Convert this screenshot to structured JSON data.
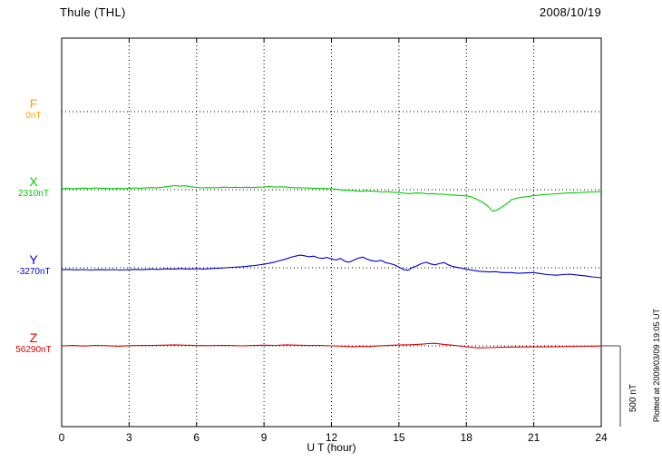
{
  "chart_data": {
    "type": "line",
    "title": "Thule (THL)",
    "date": "2008/10/19",
    "xlabel": "U T (hour)",
    "x_range": [
      0,
      24
    ],
    "x_ticks": [
      0,
      3,
      6,
      9,
      12,
      15,
      18,
      21,
      24
    ],
    "grid": "dotted-vertical-at-3h",
    "legend_position": "left-margin",
    "scale_bar": {
      "label": "500 nT",
      "nT": 500
    },
    "plotted_at": "Plotted at 2009/03/09 19:05 UT",
    "series": [
      {
        "name": "F",
        "baseline_label": "0nT",
        "baseline_value_nT": 0,
        "color": "#FFA500",
        "points": []
      },
      {
        "name": "X",
        "baseline_label": "2310nT",
        "baseline_value_nT": 2310,
        "color": "#00CC00",
        "points": [
          [
            0,
            6
          ],
          [
            0.25,
            9
          ],
          [
            0.5,
            5
          ],
          [
            0.75,
            8
          ],
          [
            1,
            10
          ],
          [
            1.25,
            7
          ],
          [
            1.5,
            11
          ],
          [
            1.75,
            9
          ],
          [
            2,
            8
          ],
          [
            2.25,
            6
          ],
          [
            2.5,
            9
          ],
          [
            2.75,
            7
          ],
          [
            3,
            8
          ],
          [
            3.25,
            11
          ],
          [
            3.5,
            9
          ],
          [
            3.75,
            12
          ],
          [
            4,
            13
          ],
          [
            4.25,
            12
          ],
          [
            4.5,
            16
          ],
          [
            4.75,
            20
          ],
          [
            5,
            26
          ],
          [
            5.25,
            22
          ],
          [
            5.5,
            24
          ],
          [
            5.75,
            18
          ],
          [
            6,
            14
          ],
          [
            6.25,
            11
          ],
          [
            6.5,
            13
          ],
          [
            6.75,
            12
          ],
          [
            7,
            13
          ],
          [
            7.25,
            16
          ],
          [
            7.5,
            14
          ],
          [
            7.75,
            15
          ],
          [
            8,
            13
          ],
          [
            8.25,
            15
          ],
          [
            8.5,
            13
          ],
          [
            8.75,
            16
          ],
          [
            9,
            17
          ],
          [
            9.25,
            19
          ],
          [
            9.5,
            16
          ],
          [
            9.75,
            18
          ],
          [
            10,
            16
          ],
          [
            10.25,
            13
          ],
          [
            10.5,
            12
          ],
          [
            10.75,
            11
          ],
          [
            11,
            10
          ],
          [
            11.25,
            9
          ],
          [
            11.5,
            8
          ],
          [
            11.75,
            7
          ],
          [
            12,
            6
          ],
          [
            12.25,
            2
          ],
          [
            12.5,
            -2
          ],
          [
            12.75,
            -4
          ],
          [
            13,
            -6
          ],
          [
            13.25,
            -10
          ],
          [
            13.5,
            -7
          ],
          [
            13.75,
            -9
          ],
          [
            14,
            -10
          ],
          [
            14.25,
            -14
          ],
          [
            14.5,
            -12
          ],
          [
            14.75,
            -16
          ],
          [
            15,
            -18
          ],
          [
            15.25,
            -22
          ],
          [
            15.5,
            -24
          ],
          [
            15.75,
            -20
          ],
          [
            16,
            -21
          ],
          [
            16.25,
            -26
          ],
          [
            16.5,
            -24
          ],
          [
            16.75,
            -27
          ],
          [
            17,
            -28
          ],
          [
            17.25,
            -32
          ],
          [
            17.5,
            -34
          ],
          [
            17.75,
            -36
          ],
          [
            18,
            -38
          ],
          [
            18.2,
            -44
          ],
          [
            18.4,
            -55
          ],
          [
            18.6,
            -68
          ],
          [
            18.8,
            -85
          ],
          [
            19,
            -108
          ],
          [
            19.1,
            -125
          ],
          [
            19.2,
            -133
          ],
          [
            19.35,
            -126
          ],
          [
            19.5,
            -115
          ],
          [
            19.7,
            -96
          ],
          [
            19.9,
            -76
          ],
          [
            20,
            -62
          ],
          [
            20.25,
            -52
          ],
          [
            20.5,
            -46
          ],
          [
            20.75,
            -42
          ],
          [
            21,
            -36
          ],
          [
            21.25,
            -33
          ],
          [
            21.5,
            -30
          ],
          [
            21.75,
            -28
          ],
          [
            22,
            -26
          ],
          [
            22.25,
            -23
          ],
          [
            22.5,
            -20
          ],
          [
            22.75,
            -19
          ],
          [
            23,
            -18
          ],
          [
            23.25,
            -16
          ],
          [
            23.5,
            -14
          ],
          [
            23.75,
            -13
          ],
          [
            24,
            -12
          ]
        ]
      },
      {
        "name": "Y",
        "baseline_label": "-3270nT",
        "baseline_value_nT": -3270,
        "color": "#0000CC",
        "points": [
          [
            0,
            -12
          ],
          [
            0.3,
            -10
          ],
          [
            0.6,
            -13
          ],
          [
            1,
            -11
          ],
          [
            1.3,
            -14
          ],
          [
            1.6,
            -12
          ],
          [
            2,
            -13
          ],
          [
            2.3,
            -11
          ],
          [
            2.6,
            -14
          ],
          [
            3,
            -12
          ],
          [
            3.3,
            -10
          ],
          [
            3.6,
            -12
          ],
          [
            4,
            -8
          ],
          [
            4.3,
            -10
          ],
          [
            4.6,
            -7
          ],
          [
            5,
            -8
          ],
          [
            5.3,
            -5
          ],
          [
            5.6,
            -8
          ],
          [
            6,
            -6
          ],
          [
            6.3,
            -8
          ],
          [
            6.6,
            -5
          ],
          [
            7,
            -2
          ],
          [
            7.3,
            0
          ],
          [
            7.6,
            3
          ],
          [
            8,
            6
          ],
          [
            8.3,
            10
          ],
          [
            8.6,
            14
          ],
          [
            9,
            22
          ],
          [
            9.3,
            30
          ],
          [
            9.6,
            40
          ],
          [
            10,
            55
          ],
          [
            10.2,
            65
          ],
          [
            10.4,
            72
          ],
          [
            10.6,
            78
          ],
          [
            10.8,
            74
          ],
          [
            11,
            68
          ],
          [
            11.2,
            72
          ],
          [
            11.4,
            62
          ],
          [
            11.6,
            58
          ],
          [
            11.8,
            64
          ],
          [
            12,
            55
          ],
          [
            12.2,
            48
          ],
          [
            12.4,
            58
          ],
          [
            12.6,
            40
          ],
          [
            12.8,
            35
          ],
          [
            13,
            48
          ],
          [
            13.2,
            60
          ],
          [
            13.4,
            66
          ],
          [
            13.6,
            52
          ],
          [
            13.8,
            44
          ],
          [
            14,
            40
          ],
          [
            14.2,
            46
          ],
          [
            14.4,
            32
          ],
          [
            14.6,
            26
          ],
          [
            14.8,
            18
          ],
          [
            15,
            4
          ],
          [
            15.2,
            -10
          ],
          [
            15.4,
            -16
          ],
          [
            15.6,
            2
          ],
          [
            15.8,
            12
          ],
          [
            16,
            26
          ],
          [
            16.2,
            34
          ],
          [
            16.4,
            24
          ],
          [
            16.6,
            18
          ],
          [
            16.8,
            26
          ],
          [
            17,
            32
          ],
          [
            17.2,
            18
          ],
          [
            17.4,
            8
          ],
          [
            17.6,
            2
          ],
          [
            18,
            -8
          ],
          [
            18.3,
            -16
          ],
          [
            18.6,
            -22
          ],
          [
            19,
            -26
          ],
          [
            19.3,
            -24
          ],
          [
            19.6,
            -30
          ],
          [
            20,
            -30
          ],
          [
            20.3,
            -34
          ],
          [
            20.6,
            -32
          ],
          [
            21,
            -30
          ],
          [
            21.3,
            -36
          ],
          [
            21.6,
            -42
          ],
          [
            22,
            -46
          ],
          [
            22.3,
            -42
          ],
          [
            22.6,
            -40
          ],
          [
            23,
            -46
          ],
          [
            23.3,
            -50
          ],
          [
            23.6,
            -56
          ],
          [
            24,
            -62
          ]
        ]
      },
      {
        "name": "Z",
        "baseline_label": "56290nT",
        "baseline_value_nT": 56290,
        "color": "#DD0000",
        "points": [
          [
            0,
            0
          ],
          [
            0.5,
            2
          ],
          [
            1,
            -1
          ],
          [
            1.5,
            3
          ],
          [
            2,
            1
          ],
          [
            2.5,
            -2
          ],
          [
            3,
            1
          ],
          [
            3.5,
            3
          ],
          [
            4,
            2
          ],
          [
            4.5,
            4
          ],
          [
            5,
            6
          ],
          [
            5.5,
            4
          ],
          [
            6,
            2
          ],
          [
            6.5,
            1
          ],
          [
            7,
            3
          ],
          [
            7.5,
            2
          ],
          [
            8,
            0
          ],
          [
            8.5,
            2
          ],
          [
            9,
            4
          ],
          [
            9.5,
            3
          ],
          [
            10,
            6
          ],
          [
            10.5,
            4
          ],
          [
            11,
            2
          ],
          [
            11.5,
            3
          ],
          [
            12,
            0
          ],
          [
            12.5,
            -3
          ],
          [
            13,
            -6
          ],
          [
            13.3,
            -2
          ],
          [
            13.6,
            -5
          ],
          [
            14,
            -1
          ],
          [
            14.5,
            2
          ],
          [
            15,
            5
          ],
          [
            15.5,
            7
          ],
          [
            16,
            10
          ],
          [
            16.3,
            14
          ],
          [
            16.6,
            16
          ],
          [
            17,
            9
          ],
          [
            17.5,
            2
          ],
          [
            18,
            -6
          ],
          [
            18.3,
            -10
          ],
          [
            18.6,
            -13
          ],
          [
            19,
            -11
          ],
          [
            19.5,
            -9
          ],
          [
            20,
            -8
          ],
          [
            20.5,
            -7
          ],
          [
            21,
            -6
          ],
          [
            21.5,
            -6
          ],
          [
            22,
            -5
          ],
          [
            22.5,
            -4
          ],
          [
            23,
            -3
          ],
          [
            23.5,
            -2
          ],
          [
            24,
            -1
          ]
        ]
      }
    ]
  }
}
